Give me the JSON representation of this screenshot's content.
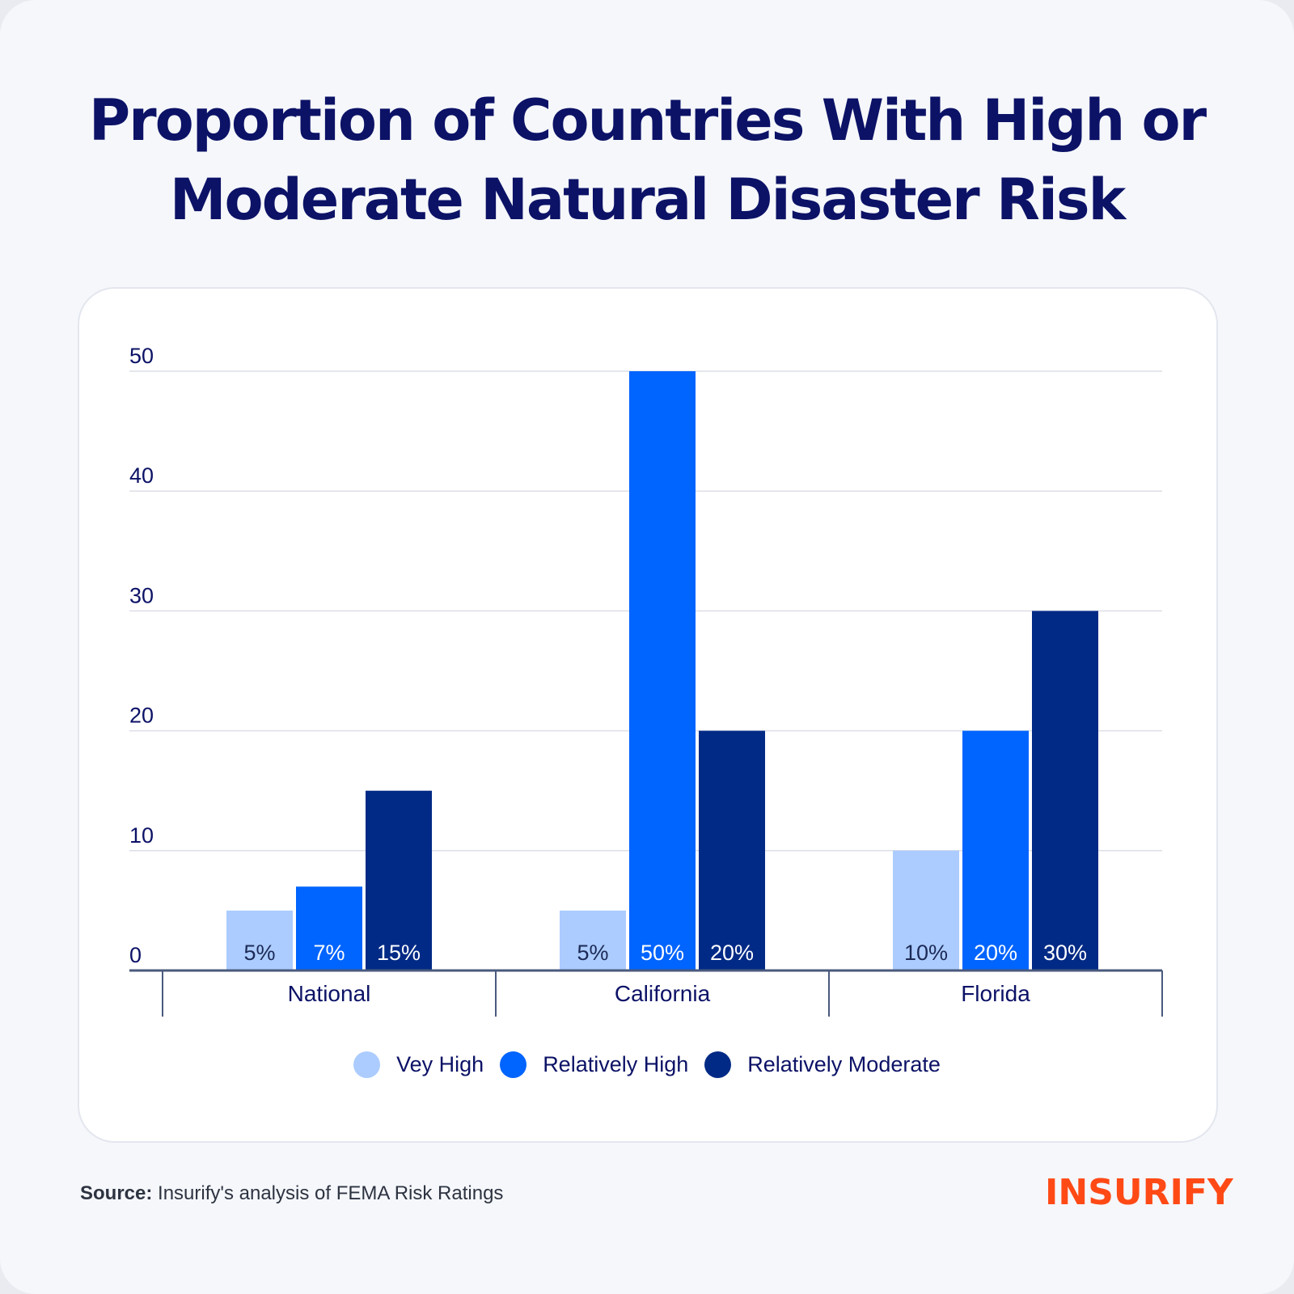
{
  "title_line1": "Proportion of Countries With High or",
  "title_line2": "Moderate Natural Disaster Risk",
  "source_label": "Source:",
  "source_text": " Insurify's analysis of FEMA Risk Ratings",
  "logo_text": "INSURIFY",
  "colors": {
    "very_high": "#acccff",
    "relatively_high": "#0064ff",
    "relatively_moderate": "#002a85",
    "title": "#0c1266",
    "brand": "#ff4a16"
  },
  "chart_data": {
    "type": "bar",
    "title": "Proportion of Countries With High or Moderate Natural Disaster Risk",
    "categories": [
      "National",
      "California",
      "Florida"
    ],
    "series": [
      {
        "name": "Vey High",
        "key": "very_high",
        "values": [
          5,
          5,
          10
        ],
        "labels": [
          "5%",
          "5%",
          "10%"
        ]
      },
      {
        "name": "Relatively High",
        "key": "relatively_high",
        "values": [
          7,
          50,
          20
        ],
        "labels": [
          "7%",
          "50%",
          "20%"
        ]
      },
      {
        "name": "Relatively Moderate",
        "key": "relatively_moderate",
        "values": [
          15,
          20,
          30
        ],
        "labels": [
          "15%",
          "20%",
          "30%"
        ]
      }
    ],
    "yticks": [
      0,
      10,
      20,
      30,
      40,
      50
    ],
    "ylim": [
      0,
      50
    ],
    "grid": true,
    "legend_position": "bottom-center",
    "xlabel": "",
    "ylabel": ""
  }
}
